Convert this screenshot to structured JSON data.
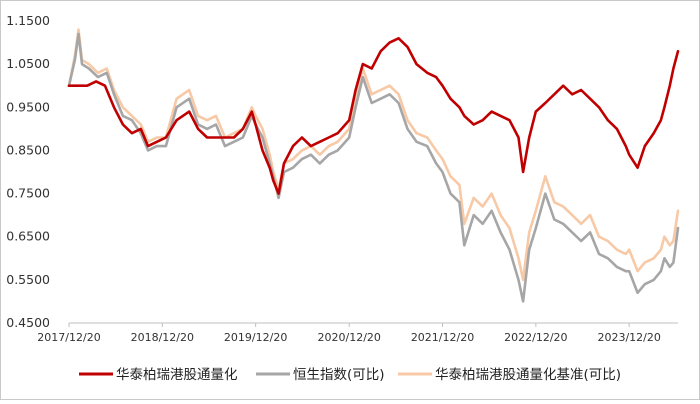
{
  "chart_data": {
    "type": "line",
    "title": "",
    "xlabel": "",
    "ylabel": "",
    "ylim": [
      0.45,
      1.15
    ],
    "yticks": [
      "1.1500",
      "1.0500",
      "0.9500",
      "0.8500",
      "0.7500",
      "0.6500",
      "0.5500",
      "0.4500"
    ],
    "xticks": [
      "2017/12/20",
      "2018/12/20",
      "2019/12/20",
      "2020/12/20",
      "2021/12/20",
      "2022/12/20",
      "2023/12/20"
    ],
    "grid": false,
    "legend_position": "bottom",
    "series": [
      {
        "name": "华泰柏瑞港股通量化",
        "color": "#c00000",
        "points": [
          [
            "2017/12/20",
            1.0
          ],
          [
            "2018/01/26",
            1.0
          ],
          [
            "2018/03/01",
            1.0
          ],
          [
            "2018/04/05",
            1.01
          ],
          [
            "2018/05/10",
            1.0
          ],
          [
            "2018/06/14",
            0.95
          ],
          [
            "2018/07/19",
            0.91
          ],
          [
            "2018/08/23",
            0.89
          ],
          [
            "2018/09/27",
            0.9
          ],
          [
            "2018/10/25",
            0.86
          ],
          [
            "2018/11/29",
            0.87
          ],
          [
            "2019/01/03",
            0.88
          ],
          [
            "2019/02/14",
            0.92
          ],
          [
            "2019/04/04",
            0.94
          ],
          [
            "2019/05/09",
            0.9
          ],
          [
            "2019/06/13",
            0.88
          ],
          [
            "2019/07/18",
            0.88
          ],
          [
            "2019/08/22",
            0.88
          ],
          [
            "2019/09/26",
            0.88
          ],
          [
            "2019/10/31",
            0.9
          ],
          [
            "2019/12/05",
            0.94
          ],
          [
            "2019/12/20",
            0.91
          ],
          [
            "2020/01/16",
            0.85
          ],
          [
            "2020/02/13",
            0.81
          ],
          [
            "2020/02/27",
            0.78
          ],
          [
            "2020/03/19",
            0.75
          ],
          [
            "2020/04/09",
            0.82
          ],
          [
            "2020/05/14",
            0.86
          ],
          [
            "2020/06/18",
            0.88
          ],
          [
            "2020/07/23",
            0.86
          ],
          [
            "2020/08/27",
            0.87
          ],
          [
            "2020/10/01",
            0.88
          ],
          [
            "2020/11/05",
            0.89
          ],
          [
            "2020/12/20",
            0.92
          ],
          [
            "2021/01/14",
            0.99
          ],
          [
            "2021/02/11",
            1.05
          ],
          [
            "2021/03/18",
            1.04
          ],
          [
            "2021/04/22",
            1.08
          ],
          [
            "2021/05/27",
            1.1
          ],
          [
            "2021/07/01",
            1.11
          ],
          [
            "2021/08/05",
            1.09
          ],
          [
            "2021/09/09",
            1.05
          ],
          [
            "2021/10/21",
            1.03
          ],
          [
            "2021/11/25",
            1.02
          ],
          [
            "2021/12/20",
            1.0
          ],
          [
            "2022/01/20",
            0.97
          ],
          [
            "2022/02/24",
            0.95
          ],
          [
            "2022/03/15",
            0.93
          ],
          [
            "2022/04/21",
            0.91
          ],
          [
            "2022/05/26",
            0.92
          ],
          [
            "2022/06/30",
            0.94
          ],
          [
            "2022/08/04",
            0.93
          ],
          [
            "2022/09/08",
            0.92
          ],
          [
            "2022/10/13",
            0.88
          ],
          [
            "2022/10/31",
            0.8
          ],
          [
            "2022/11/24",
            0.88
          ],
          [
            "2022/12/20",
            0.94
          ],
          [
            "2023/01/26",
            0.96
          ],
          [
            "2023/03/02",
            0.98
          ],
          [
            "2023/04/06",
            1.0
          ],
          [
            "2023/05/11",
            0.98
          ],
          [
            "2023/06/15",
            0.99
          ],
          [
            "2023/07/20",
            0.97
          ],
          [
            "2023/08/24",
            0.95
          ],
          [
            "2023/09/28",
            0.92
          ],
          [
            "2023/11/02",
            0.9
          ],
          [
            "2023/12/07",
            0.86
          ],
          [
            "2023/12/20",
            0.84
          ],
          [
            "2024/01/22",
            0.81
          ],
          [
            "2024/02/19",
            0.86
          ],
          [
            "2024/03/25",
            0.89
          ],
          [
            "2024/04/22",
            0.92
          ],
          [
            "2024/05/06",
            0.95
          ],
          [
            "2024/05/27",
            1.0
          ],
          [
            "2024/06/10",
            1.04
          ],
          [
            "2024/06/28",
            1.08
          ]
        ]
      },
      {
        "name": "恒生指数(可比)",
        "color": "#a6a6a6",
        "points": [
          [
            "2017/12/20",
            1.0
          ],
          [
            "2018/01/12",
            1.06
          ],
          [
            "2018/01/26",
            1.12
          ],
          [
            "2018/02/09",
            1.05
          ],
          [
            "2018/03/08",
            1.04
          ],
          [
            "2018/04/12",
            1.02
          ],
          [
            "2018/05/17",
            1.03
          ],
          [
            "2018/06/14",
            0.98
          ],
          [
            "2018/07/19",
            0.93
          ],
          [
            "2018/08/23",
            0.92
          ],
          [
            "2018/09/27",
            0.89
          ],
          [
            "2018/10/25",
            0.85
          ],
          [
            "2018/11/29",
            0.86
          ],
          [
            "2019/01/03",
            0.86
          ],
          [
            "2019/02/14",
            0.95
          ],
          [
            "2019/04/04",
            0.97
          ],
          [
            "2019/05/09",
            0.91
          ],
          [
            "2019/06/13",
            0.9
          ],
          [
            "2019/07/18",
            0.91
          ],
          [
            "2019/08/22",
            0.86
          ],
          [
            "2019/09/26",
            0.87
          ],
          [
            "2019/10/31",
            0.88
          ],
          [
            "2019/12/05",
            0.93
          ],
          [
            "2019/12/20",
            0.91
          ],
          [
            "2020/01/16",
            0.88
          ],
          [
            "2020/02/13",
            0.82
          ],
          [
            "2020/02/27",
            0.79
          ],
          [
            "2020/03/19",
            0.74
          ],
          [
            "2020/04/09",
            0.8
          ],
          [
            "2020/05/14",
            0.81
          ],
          [
            "2020/06/18",
            0.83
          ],
          [
            "2020/07/23",
            0.84
          ],
          [
            "2020/08/27",
            0.82
          ],
          [
            "2020/10/01",
            0.84
          ],
          [
            "2020/11/05",
            0.85
          ],
          [
            "2020/12/20",
            0.88
          ],
          [
            "2021/01/14",
            0.95
          ],
          [
            "2021/02/11",
            1.02
          ],
          [
            "2021/03/18",
            0.96
          ],
          [
            "2021/04/22",
            0.97
          ],
          [
            "2021/05/27",
            0.98
          ],
          [
            "2021/07/01",
            0.96
          ],
          [
            "2021/08/05",
            0.9
          ],
          [
            "2021/09/09",
            0.87
          ],
          [
            "2021/10/21",
            0.86
          ],
          [
            "2021/11/25",
            0.82
          ],
          [
            "2021/12/20",
            0.8
          ],
          [
            "2022/01/20",
            0.75
          ],
          [
            "2022/02/24",
            0.73
          ],
          [
            "2022/03/15",
            0.63
          ],
          [
            "2022/04/21",
            0.7
          ],
          [
            "2022/05/26",
            0.68
          ],
          [
            "2022/06/30",
            0.71
          ],
          [
            "2022/08/04",
            0.66
          ],
          [
            "2022/09/08",
            0.62
          ],
          [
            "2022/10/13",
            0.55
          ],
          [
            "2022/10/31",
            0.5
          ],
          [
            "2022/11/24",
            0.62
          ],
          [
            "2022/12/20",
            0.67
          ],
          [
            "2023/01/26",
            0.75
          ],
          [
            "2023/03/02",
            0.69
          ],
          [
            "2023/04/06",
            0.68
          ],
          [
            "2023/05/11",
            0.66
          ],
          [
            "2023/06/15",
            0.64
          ],
          [
            "2023/07/20",
            0.66
          ],
          [
            "2023/08/24",
            0.61
          ],
          [
            "2023/09/28",
            0.6
          ],
          [
            "2023/11/02",
            0.58
          ],
          [
            "2023/12/07",
            0.57
          ],
          [
            "2023/12/20",
            0.57
          ],
          [
            "2024/01/22",
            0.52
          ],
          [
            "2024/02/19",
            0.54
          ],
          [
            "2024/03/25",
            0.55
          ],
          [
            "2024/04/22",
            0.57
          ],
          [
            "2024/05/06",
            0.6
          ],
          [
            "2024/05/27",
            0.58
          ],
          [
            "2024/06/10",
            0.59
          ],
          [
            "2024/06/28",
            0.67
          ]
        ]
      },
      {
        "name": "华泰柏瑞港股通量化基准(可比)",
        "color": "#f7c9a6",
        "points": [
          [
            "2017/12/20",
            1.0
          ],
          [
            "2018/01/12",
            1.07
          ],
          [
            "2018/01/26",
            1.13
          ],
          [
            "2018/02/09",
            1.06
          ],
          [
            "2018/03/08",
            1.05
          ],
          [
            "2018/04/12",
            1.03
          ],
          [
            "2018/05/17",
            1.04
          ],
          [
            "2018/06/14",
            0.99
          ],
          [
            "2018/07/19",
            0.95
          ],
          [
            "2018/08/23",
            0.93
          ],
          [
            "2018/09/27",
            0.91
          ],
          [
            "2018/10/25",
            0.87
          ],
          [
            "2018/11/29",
            0.88
          ],
          [
            "2019/01/03",
            0.88
          ],
          [
            "2019/02/14",
            0.97
          ],
          [
            "2019/04/04",
            0.99
          ],
          [
            "2019/05/09",
            0.93
          ],
          [
            "2019/06/13",
            0.92
          ],
          [
            "2019/07/18",
            0.93
          ],
          [
            "2019/08/22",
            0.88
          ],
          [
            "2019/09/26",
            0.89
          ],
          [
            "2019/10/31",
            0.9
          ],
          [
            "2019/12/05",
            0.95
          ],
          [
            "2019/12/20",
            0.93
          ],
          [
            "2020/01/16",
            0.9
          ],
          [
            "2020/02/13",
            0.84
          ],
          [
            "2020/02/27",
            0.8
          ],
          [
            "2020/03/19",
            0.76
          ],
          [
            "2020/04/09",
            0.82
          ],
          [
            "2020/05/14",
            0.83
          ],
          [
            "2020/06/18",
            0.85
          ],
          [
            "2020/07/23",
            0.86
          ],
          [
            "2020/08/27",
            0.84
          ],
          [
            "2020/10/01",
            0.86
          ],
          [
            "2020/11/05",
            0.87
          ],
          [
            "2020/12/20",
            0.9
          ],
          [
            "2021/01/14",
            0.97
          ],
          [
            "2021/02/11",
            1.04
          ],
          [
            "2021/03/18",
            0.98
          ],
          [
            "2021/04/22",
            0.99
          ],
          [
            "2021/05/27",
            1.0
          ],
          [
            "2021/07/01",
            0.98
          ],
          [
            "2021/08/05",
            0.92
          ],
          [
            "2021/09/09",
            0.89
          ],
          [
            "2021/10/21",
            0.88
          ],
          [
            "2021/11/25",
            0.85
          ],
          [
            "2021/12/20",
            0.83
          ],
          [
            "2022/01/20",
            0.79
          ],
          [
            "2022/02/24",
            0.77
          ],
          [
            "2022/03/15",
            0.68
          ],
          [
            "2022/04/21",
            0.74
          ],
          [
            "2022/05/26",
            0.72
          ],
          [
            "2022/06/30",
            0.75
          ],
          [
            "2022/08/04",
            0.7
          ],
          [
            "2022/09/08",
            0.67
          ],
          [
            "2022/10/13",
            0.6
          ],
          [
            "2022/10/31",
            0.55
          ],
          [
            "2022/11/24",
            0.66
          ],
          [
            "2022/12/20",
            0.71
          ],
          [
            "2023/01/26",
            0.79
          ],
          [
            "2023/03/02",
            0.73
          ],
          [
            "2023/04/06",
            0.72
          ],
          [
            "2023/05/11",
            0.7
          ],
          [
            "2023/06/15",
            0.68
          ],
          [
            "2023/07/20",
            0.7
          ],
          [
            "2023/08/24",
            0.65
          ],
          [
            "2023/09/28",
            0.64
          ],
          [
            "2023/11/02",
            0.62
          ],
          [
            "2023/12/07",
            0.61
          ],
          [
            "2023/12/20",
            0.62
          ],
          [
            "2024/01/22",
            0.57
          ],
          [
            "2024/02/19",
            0.59
          ],
          [
            "2024/03/25",
            0.6
          ],
          [
            "2024/04/22",
            0.62
          ],
          [
            "2024/05/06",
            0.65
          ],
          [
            "2024/05/27",
            0.63
          ],
          [
            "2024/06/10",
            0.64
          ],
          [
            "2024/06/28",
            0.71
          ]
        ]
      }
    ]
  }
}
